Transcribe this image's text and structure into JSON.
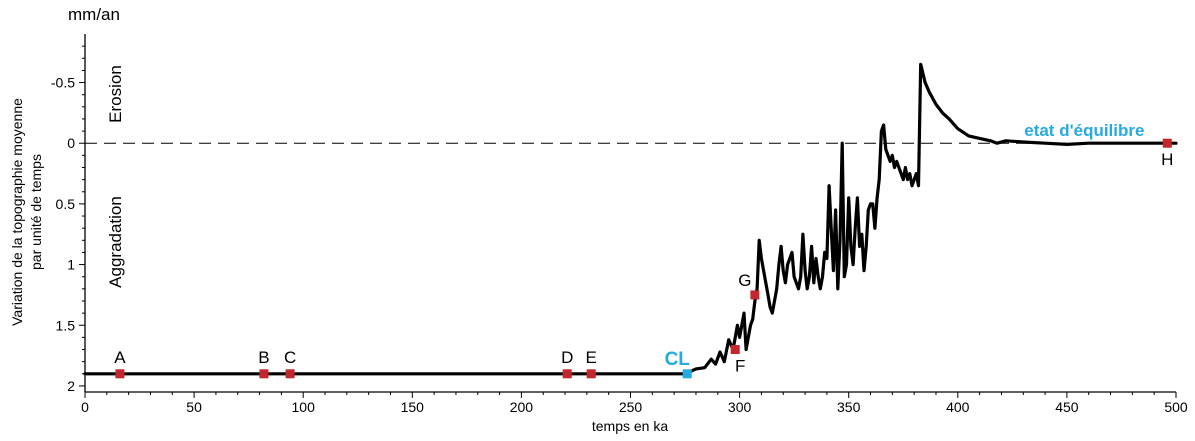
{
  "chart_data": {
    "type": "line",
    "unit_label": "mm/an",
    "ylabel_line1": "Variation de la topographie moyenne",
    "ylabel_line2": "par unité de temps",
    "xlabel": "temps en ka",
    "xlim": [
      0,
      500
    ],
    "ylim": [
      -0.9,
      2.05
    ],
    "y_inverted": true,
    "x_ticks": [
      "0",
      "50",
      "100",
      "150",
      "200",
      "250",
      "300",
      "350",
      "400",
      "450",
      "500"
    ],
    "x_tick_values": [
      0,
      50,
      100,
      150,
      200,
      250,
      300,
      350,
      400,
      450,
      500
    ],
    "y_ticks": [
      "-0.5",
      "0",
      "0.5",
      "1",
      "1.5",
      "2"
    ],
    "y_tick_values": [
      -0.5,
      0,
      0.5,
      1,
      1.5,
      2
    ],
    "reference_line": 0,
    "region_labels": {
      "top": "Erosion",
      "bottom": "Aggradation"
    },
    "series": [
      {
        "color": "#000000",
        "x": [
          0,
          30,
          80,
          120,
          200,
          250,
          275,
          280,
          284,
          287,
          289,
          291,
          293,
          295,
          297,
          299,
          300,
          302,
          303,
          305,
          306,
          307,
          308,
          309,
          310,
          311,
          312,
          313,
          314,
          315,
          316,
          317,
          318,
          319,
          320,
          321,
          322,
          323,
          324,
          325,
          326,
          327,
          328,
          329,
          330,
          331,
          332,
          333,
          334,
          335,
          336,
          337,
          338,
          339,
          340,
          341,
          342,
          343,
          344,
          345,
          346,
          347,
          348,
          349,
          350,
          351,
          352,
          353,
          354,
          355,
          356,
          357,
          358,
          359,
          360,
          361,
          362,
          363,
          364,
          365,
          366,
          367,
          368,
          369,
          370,
          371,
          372,
          373,
          374,
          375,
          376,
          377,
          378,
          379,
          380,
          381,
          382,
          383,
          385,
          387,
          390,
          393,
          396,
          400,
          405,
          410,
          415,
          418,
          422,
          430,
          440,
          450,
          460,
          470,
          480,
          490,
          496,
          500
        ],
        "y": [
          1.9,
          1.9,
          1.9,
          1.9,
          1.9,
          1.9,
          1.9,
          1.86,
          1.85,
          1.78,
          1.82,
          1.72,
          1.8,
          1.62,
          1.7,
          1.5,
          1.6,
          1.4,
          1.7,
          1.5,
          1.45,
          1.3,
          1.2,
          0.8,
          0.95,
          1.05,
          1.15,
          1.25,
          1.35,
          1.4,
          1.3,
          1.2,
          1.0,
          0.85,
          1.05,
          1.15,
          1.0,
          0.95,
          0.9,
          1.1,
          1.15,
          1.2,
          1.1,
          0.75,
          1.05,
          1.2,
          1.1,
          0.85,
          1.15,
          0.95,
          1.1,
          1.2,
          1.1,
          0.9,
          0.95,
          0.35,
          0.7,
          1.05,
          0.55,
          1.2,
          0.8,
          0.0,
          1.1,
          1.0,
          0.45,
          0.85,
          1.0,
          0.7,
          0.45,
          0.85,
          0.75,
          1.05,
          0.85,
          0.55,
          0.5,
          0.5,
          0.7,
          0.45,
          0.3,
          -0.1,
          -0.15,
          0.05,
          0.1,
          0.15,
          0.1,
          0.2,
          0.15,
          0.2,
          0.25,
          0.3,
          0.2,
          0.3,
          0.25,
          0.35,
          0.3,
          0.25,
          0.35,
          -0.65,
          -0.5,
          -0.42,
          -0.32,
          -0.25,
          -0.2,
          -0.12,
          -0.06,
          -0.04,
          -0.02,
          0.0,
          -0.02,
          -0.01,
          0.0,
          0.01,
          0.0,
          0.0,
          0.0,
          0.0,
          0.0,
          0.0
        ]
      }
    ],
    "markers": [
      {
        "label": "A",
        "x": 16,
        "y": 1.9,
        "color": "#c1272d",
        "label_pos": "above"
      },
      {
        "label": "B",
        "x": 82,
        "y": 1.9,
        "color": "#c1272d",
        "label_pos": "above"
      },
      {
        "label": "C",
        "x": 94,
        "y": 1.9,
        "color": "#c1272d",
        "label_pos": "above"
      },
      {
        "label": "D",
        "x": 221,
        "y": 1.9,
        "color": "#c1272d",
        "label_pos": "above"
      },
      {
        "label": "E",
        "x": 232,
        "y": 1.9,
        "color": "#c1272d",
        "label_pos": "above"
      },
      {
        "label": "CL",
        "x": 276,
        "y": 1.9,
        "color": "#27aae1",
        "label_pos": "above-left",
        "bold": true
      },
      {
        "label": "F",
        "x": 298,
        "y": 1.7,
        "color": "#c1272d",
        "label_pos": "below-right"
      },
      {
        "label": "G",
        "x": 307,
        "y": 1.25,
        "color": "#c1272d",
        "label_pos": "above-left"
      },
      {
        "label": "H",
        "x": 496,
        "y": 0.0,
        "color": "#c1272d",
        "label_pos": "below"
      }
    ],
    "annotations": [
      {
        "text": "etat d'équilibre",
        "x": 458,
        "y": -0.06,
        "color": "#27aae1",
        "bold": true
      }
    ]
  }
}
